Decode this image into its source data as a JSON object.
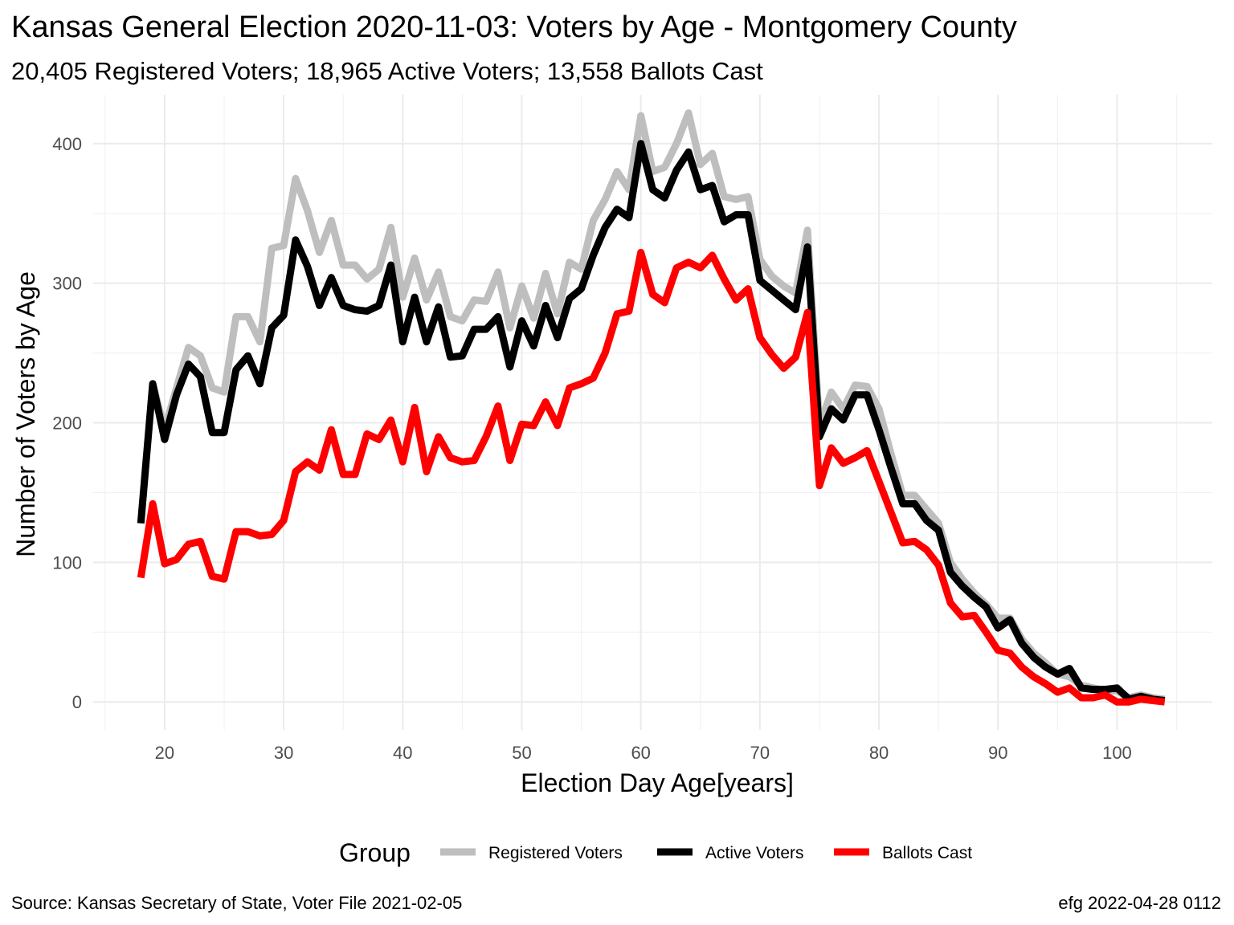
{
  "chart_data": {
    "type": "line",
    "title": "Kansas General Election 2020-11-03:  Voters by Age - Montgomery County",
    "subtitle": "20,405 Registered Voters; 18,965 Active Voters; 13,558 Ballots Cast",
    "xlabel": "Election Day Age[years]",
    "ylabel": "Number of Voters by Age",
    "xlim": [
      14,
      108
    ],
    "ylim": [
      -20,
      435
    ],
    "xticks": [
      20,
      30,
      40,
      50,
      60,
      70,
      80,
      90,
      100
    ],
    "yticks": [
      0,
      100,
      200,
      300,
      400
    ],
    "grid": true,
    "legend": {
      "title": "Group",
      "position": "bottom"
    },
    "caption_left": "Source:  Kansas Secretary of State, Voter File  2021-02-05",
    "caption_right": "efg 2022-04-28 0112",
    "x": [
      18,
      19,
      20,
      21,
      22,
      23,
      24,
      25,
      26,
      27,
      28,
      29,
      30,
      31,
      32,
      33,
      34,
      35,
      36,
      37,
      38,
      39,
      40,
      41,
      42,
      43,
      44,
      45,
      46,
      47,
      48,
      49,
      50,
      51,
      52,
      53,
      54,
      55,
      56,
      57,
      58,
      59,
      60,
      61,
      62,
      63,
      64,
      65,
      66,
      67,
      68,
      69,
      70,
      71,
      72,
      73,
      74,
      75,
      76,
      77,
      78,
      79,
      80,
      81,
      82,
      83,
      84,
      85,
      86,
      87,
      88,
      89,
      90,
      91,
      92,
      93,
      94,
      95,
      96,
      97,
      98,
      99,
      100,
      101,
      102,
      103,
      104
    ],
    "series": [
      {
        "name": "Registered Voters",
        "color": "#bebebe",
        "values": [
          128,
          228,
          195,
          225,
          254,
          248,
          225,
          222,
          276,
          276,
          258,
          325,
          327,
          375,
          352,
          322,
          345,
          313,
          313,
          303,
          310,
          340,
          290,
          318,
          288,
          308,
          276,
          273,
          288,
          287,
          308,
          268,
          298,
          275,
          307,
          278,
          315,
          310,
          345,
          360,
          380,
          367,
          420,
          380,
          383,
          400,
          422,
          385,
          393,
          362,
          360,
          362,
          317,
          305,
          298,
          293,
          338,
          198,
          222,
          210,
          227,
          226,
          210,
          178,
          148,
          148,
          138,
          128,
          100,
          88,
          78,
          70,
          60,
          60,
          45,
          35,
          28,
          20,
          18,
          12,
          10,
          8,
          8,
          3,
          5,
          3,
          2
        ]
      },
      {
        "name": "Active Voters",
        "color": "#000000",
        "values": [
          128,
          228,
          188,
          220,
          242,
          233,
          193,
          193,
          238,
          248,
          228,
          268,
          277,
          331,
          312,
          284,
          304,
          284,
          281,
          280,
          284,
          313,
          258,
          290,
          258,
          283,
          247,
          248,
          267,
          267,
          276,
          240,
          273,
          255,
          284,
          261,
          289,
          296,
          320,
          340,
          353,
          347,
          400,
          367,
          361,
          381,
          394,
          367,
          370,
          344,
          349,
          349,
          302,
          295,
          288,
          281,
          326,
          190,
          210,
          202,
          220,
          220,
          195,
          168,
          142,
          142,
          130,
          123,
          93,
          83,
          75,
          68,
          53,
          59,
          42,
          32,
          25,
          20,
          24,
          10,
          9,
          9,
          10,
          2,
          4,
          2,
          1
        ]
      },
      {
        "name": "Ballots Cast",
        "color": "#ff0000",
        "values": [
          89,
          142,
          99,
          102,
          113,
          115,
          90,
          88,
          122,
          122,
          119,
          120,
          130,
          165,
          172,
          166,
          195,
          163,
          163,
          192,
          188,
          202,
          172,
          211,
          165,
          190,
          175,
          172,
          173,
          190,
          212,
          173,
          199,
          198,
          215,
          198,
          225,
          228,
          232,
          250,
          278,
          280,
          322,
          292,
          286,
          311,
          315,
          311,
          320,
          303,
          288,
          296,
          261,
          249,
          239,
          247,
          279,
          155,
          182,
          171,
          175,
          180,
          158,
          136,
          114,
          115,
          109,
          98,
          71,
          61,
          62,
          50,
          37,
          35,
          25,
          18,
          13,
          7,
          10,
          3,
          3,
          5,
          0,
          0,
          2,
          1,
          0
        ]
      }
    ]
  }
}
